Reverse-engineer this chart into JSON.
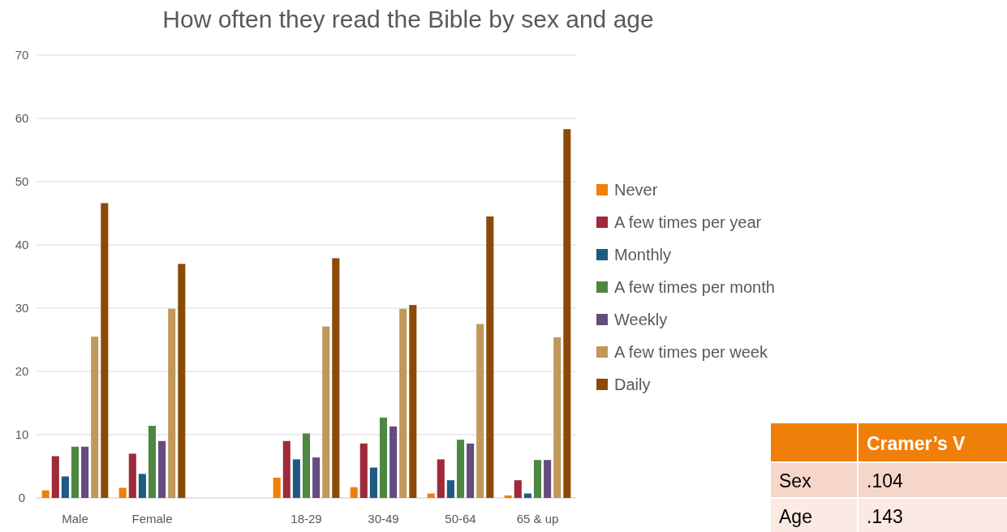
{
  "chart_data": {
    "type": "bar",
    "title": "How often they read the Bible by sex and age",
    "categories": [
      "Male",
      "Female",
      null,
      "18-29",
      "30-49",
      "50-64",
      "65 & up"
    ],
    "series": [
      {
        "name": "Never",
        "color": "#f07f09",
        "values": [
          1.2,
          1.6,
          null,
          3.2,
          1.7,
          0.7,
          0.4
        ]
      },
      {
        "name": "A few times per year",
        "color": "#9e2a3a",
        "values": [
          6.6,
          7.0,
          null,
          9.0,
          8.6,
          6.1,
          2.8
        ]
      },
      {
        "name": "Monthly",
        "color": "#1f5a82",
        "values": [
          3.4,
          3.8,
          null,
          6.1,
          4.8,
          2.8,
          0.7
        ]
      },
      {
        "name": "A few times per month",
        "color": "#4e8742",
        "values": [
          8.1,
          11.4,
          null,
          10.2,
          12.7,
          9.2,
          6.0
        ]
      },
      {
        "name": "Weekly",
        "color": "#654b7e",
        "values": [
          8.1,
          9.0,
          null,
          6.4,
          11.3,
          8.6,
          6.0
        ]
      },
      {
        "name": "A few times per week",
        "color": "#c19859",
        "values": [
          25.5,
          29.9,
          null,
          27.1,
          29.9,
          27.5,
          25.4
        ]
      },
      {
        "name": "Daily",
        "color": "#8b4a08",
        "values": [
          46.6,
          37.0,
          null,
          37.9,
          30.5,
          44.5,
          58.3
        ]
      }
    ],
    "ylim": [
      0,
      70
    ],
    "yticks": [
      0,
      10,
      20,
      30,
      40,
      50,
      60,
      70
    ],
    "grid": "y",
    "legend": "right",
    "annotations": [
      "Cramer’s V",
      "Sex",
      ".104",
      "Age",
      ".143"
    ]
  }
}
